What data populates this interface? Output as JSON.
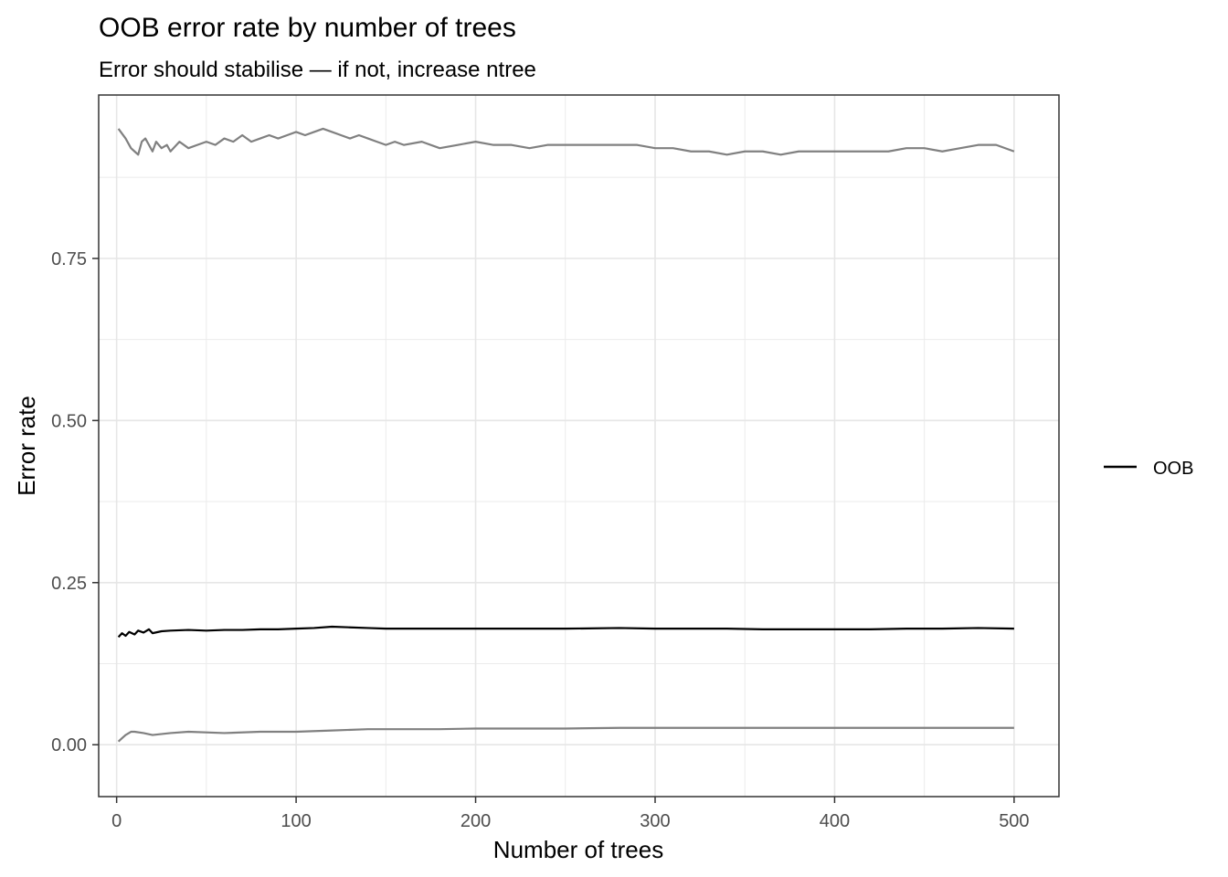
{
  "chart_data": {
    "type": "line",
    "title": "OOB error rate by number of trees",
    "subtitle": "Error should stabilise — if not, increase ntree",
    "xlabel": "Number of trees",
    "ylabel": "Error rate",
    "xlim": [
      -10,
      525
    ],
    "ylim": [
      -0.08,
      1.002
    ],
    "x_ticks": [
      0,
      100,
      200,
      300,
      400,
      500
    ],
    "x_tick_labels": [
      "0",
      "100",
      "200",
      "300",
      "400",
      "500"
    ],
    "y_ticks": [
      0.0,
      0.25,
      0.5,
      0.75
    ],
    "y_tick_labels": [
      "0.00",
      "0.25",
      "0.50",
      "0.75"
    ],
    "grid": true,
    "legend": {
      "placement": "right",
      "entries": [
        {
          "label": "OOB",
          "color": "#000000"
        }
      ]
    },
    "series": [
      {
        "name": "OOB",
        "color": "#000000",
        "x": [
          1,
          3,
          5,
          7,
          10,
          12,
          15,
          18,
          20,
          25,
          30,
          40,
          50,
          60,
          70,
          80,
          90,
          100,
          110,
          120,
          130,
          140,
          150,
          160,
          180,
          200,
          220,
          250,
          280,
          300,
          320,
          340,
          360,
          380,
          400,
          420,
          440,
          460,
          480,
          500
        ],
        "y": [
          0.166,
          0.172,
          0.168,
          0.174,
          0.17,
          0.176,
          0.173,
          0.178,
          0.172,
          0.175,
          0.176,
          0.177,
          0.176,
          0.177,
          0.177,
          0.178,
          0.178,
          0.179,
          0.18,
          0.182,
          0.181,
          0.18,
          0.179,
          0.179,
          0.179,
          0.179,
          0.179,
          0.179,
          0.18,
          0.179,
          0.179,
          0.179,
          0.178,
          0.178,
          0.178,
          0.178,
          0.179,
          0.179,
          0.18,
          0.179
        ]
      },
      {
        "color": "#808080",
        "x": [
          1,
          5,
          8,
          10,
          12,
          14,
          16,
          18,
          20,
          22,
          25,
          28,
          30,
          35,
          40,
          45,
          50,
          55,
          60,
          65,
          70,
          75,
          80,
          85,
          90,
          95,
          100,
          105,
          110,
          115,
          120,
          125,
          130,
          135,
          140,
          145,
          150,
          155,
          160,
          170,
          180,
          190,
          200,
          210,
          220,
          230,
          240,
          250,
          260,
          270,
          280,
          290,
          300,
          310,
          320,
          330,
          340,
          350,
          360,
          370,
          380,
          390,
          400,
          410,
          420,
          430,
          440,
          450,
          460,
          470,
          480,
          490,
          500
        ],
        "y": [
          0.95,
          0.935,
          0.92,
          0.915,
          0.91,
          0.93,
          0.935,
          0.925,
          0.915,
          0.93,
          0.92,
          0.925,
          0.915,
          0.93,
          0.92,
          0.925,
          0.93,
          0.925,
          0.935,
          0.93,
          0.94,
          0.93,
          0.935,
          0.94,
          0.935,
          0.94,
          0.945,
          0.94,
          0.945,
          0.95,
          0.945,
          0.94,
          0.935,
          0.94,
          0.935,
          0.93,
          0.925,
          0.93,
          0.925,
          0.93,
          0.92,
          0.925,
          0.93,
          0.925,
          0.925,
          0.92,
          0.925,
          0.925,
          0.925,
          0.925,
          0.925,
          0.925,
          0.92,
          0.92,
          0.915,
          0.915,
          0.91,
          0.915,
          0.915,
          0.91,
          0.915,
          0.915,
          0.915,
          0.915,
          0.915,
          0.915,
          0.92,
          0.92,
          0.915,
          0.92,
          0.925,
          0.925,
          0.915
        ]
      },
      {
        "color": "#808080",
        "x": [
          1,
          3,
          5,
          8,
          10,
          15,
          20,
          30,
          40,
          60,
          80,
          100,
          120,
          140,
          160,
          180,
          200,
          220,
          250,
          280,
          300,
          350,
          400,
          450,
          500
        ],
        "y": [
          0.005,
          0.01,
          0.015,
          0.02,
          0.02,
          0.018,
          0.015,
          0.018,
          0.02,
          0.018,
          0.02,
          0.02,
          0.022,
          0.024,
          0.024,
          0.024,
          0.025,
          0.025,
          0.025,
          0.026,
          0.026,
          0.026,
          0.026,
          0.026,
          0.026
        ]
      }
    ]
  }
}
